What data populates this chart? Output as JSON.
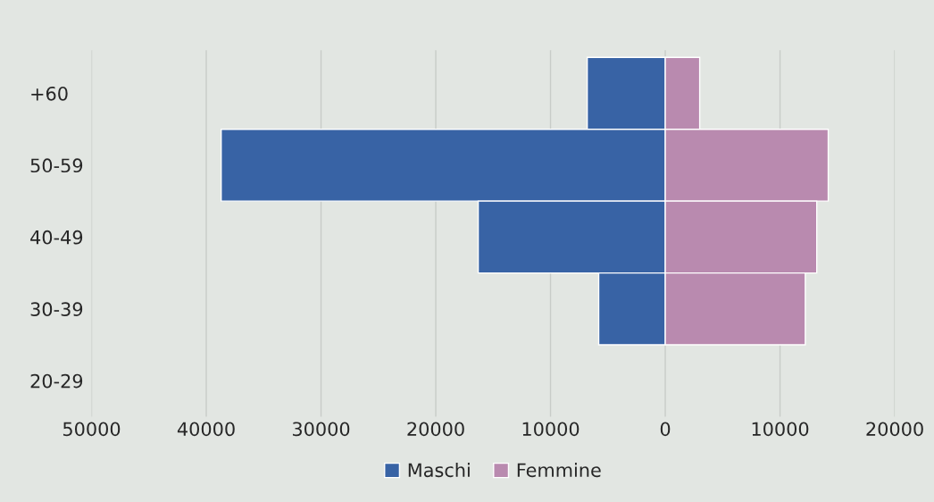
{
  "chart_data": {
    "type": "bar",
    "orientation": "horizontal",
    "stacked": true,
    "categories": [
      "+60",
      "50-59",
      "40-49",
      "30-39",
      "20-29"
    ],
    "series": [
      {
        "name": "Maschi",
        "color": "#3863a5",
        "values": [
          -6800,
          -38700,
          -16300,
          -5800,
          0
        ]
      },
      {
        "name": "Femmine",
        "color": "#b98aaf",
        "values": [
          3000,
          14200,
          13200,
          12200,
          0
        ]
      }
    ],
    "xlim": [
      -50000,
      20000
    ],
    "xticks": [
      {
        "value": -50000,
        "label": "50000"
      },
      {
        "value": -40000,
        "label": "40000"
      },
      {
        "value": -30000,
        "label": "30000"
      },
      {
        "value": -20000,
        "label": "20000"
      },
      {
        "value": -10000,
        "label": "10000"
      },
      0,
      10000,
      20000
    ],
    "grid": "x",
    "legend": "bottom"
  }
}
